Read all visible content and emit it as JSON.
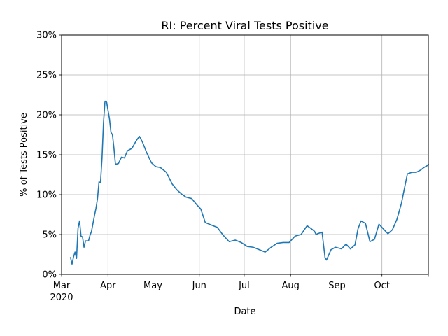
{
  "chart_data": {
    "type": "line",
    "title": "RI: Percent Viral Tests Positive",
    "xlabel": "Date",
    "ylabel": "% of Tests Positive",
    "ylabel_color": "#1f77b4",
    "line_color": "#1f77b4",
    "grid": true,
    "xlim": [
      "2020-03-01",
      "2020-11-01"
    ],
    "ylim": [
      0,
      30
    ],
    "y_ticks": [
      {
        "value": 0,
        "label": "0%"
      },
      {
        "value": 5,
        "label": "5%"
      },
      {
        "value": 10,
        "label": "10%"
      },
      {
        "value": 15,
        "label": "15%"
      },
      {
        "value": 20,
        "label": "20%"
      },
      {
        "value": 25,
        "label": "25%"
      },
      {
        "value": 30,
        "label": "30%"
      }
    ],
    "x_ticks": [
      {
        "date": "2020-03-01",
        "label": "Mar",
        "sublabel": "2020"
      },
      {
        "date": "2020-04-01",
        "label": "Apr"
      },
      {
        "date": "2020-05-01",
        "label": "May"
      },
      {
        "date": "2020-06-01",
        "label": "Jun"
      },
      {
        "date": "2020-07-01",
        "label": "Jul"
      },
      {
        "date": "2020-08-01",
        "label": "Aug"
      },
      {
        "date": "2020-09-01",
        "label": "Sep"
      },
      {
        "date": "2020-10-01",
        "label": "Oct"
      },
      {
        "date": "2020-11-01",
        "label": ""
      }
    ],
    "series": [
      {
        "x": [
          "2020-03-07",
          "2020-03-08",
          "2020-03-09",
          "2020-03-10",
          "2020-03-11",
          "2020-03-12",
          "2020-03-13",
          "2020-03-14",
          "2020-03-15",
          "2020-03-16",
          "2020-03-17",
          "2020-03-18",
          "2020-03-19",
          "2020-03-20",
          "2020-03-21",
          "2020-03-22",
          "2020-03-23",
          "2020-03-24",
          "2020-03-25",
          "2020-03-26",
          "2020-03-27",
          "2020-03-28",
          "2020-03-29",
          "2020-03-30",
          "2020-03-31",
          "2020-04-01",
          "2020-04-02",
          "2020-04-03",
          "2020-04-04",
          "2020-04-05",
          "2020-04-06",
          "2020-04-08",
          "2020-04-10",
          "2020-04-12",
          "2020-04-14",
          "2020-04-17",
          "2020-04-20",
          "2020-04-22",
          "2020-04-24",
          "2020-04-27",
          "2020-04-30",
          "2020-05-03",
          "2020-05-06",
          "2020-05-10",
          "2020-05-14",
          "2020-05-17",
          "2020-05-20",
          "2020-05-23",
          "2020-05-27",
          "2020-05-30",
          "2020-06-02",
          "2020-06-05",
          "2020-06-09",
          "2020-06-13",
          "2020-06-17",
          "2020-06-21",
          "2020-06-25",
          "2020-06-29",
          "2020-07-03",
          "2020-07-07",
          "2020-07-11",
          "2020-07-15",
          "2020-07-19",
          "2020-07-23",
          "2020-07-27",
          "2020-07-31",
          "2020-08-04",
          "2020-08-08",
          "2020-08-12",
          "2020-08-15",
          "2020-08-17",
          "2020-08-18",
          "2020-08-19",
          "2020-08-22",
          "2020-08-24",
          "2020-08-25",
          "2020-08-28",
          "2020-08-31",
          "2020-09-04",
          "2020-09-07",
          "2020-09-10",
          "2020-09-13",
          "2020-09-15",
          "2020-09-17",
          "2020-09-20",
          "2020-09-23",
          "2020-09-26",
          "2020-09-29",
          "2020-10-02",
          "2020-10-05",
          "2020-10-08",
          "2020-10-11",
          "2020-10-14",
          "2020-10-18",
          "2020-10-21",
          "2020-10-24",
          "2020-10-27",
          "2020-10-29",
          "2020-10-31",
          "2020-11-01"
        ],
        "values": [
          2.1,
          1.3,
          2.2,
          2.8,
          2.0,
          5.8,
          6.7,
          4.8,
          4.7,
          3.4,
          4.2,
          4.2,
          4.2,
          4.9,
          5.4,
          6.4,
          7.4,
          8.3,
          9.5,
          11.6,
          11.5,
          14.5,
          19.0,
          21.7,
          21.7,
          20.6,
          19.5,
          17.8,
          17.5,
          15.8,
          13.8,
          13.9,
          14.7,
          14.6,
          15.5,
          15.8,
          16.8,
          17.3,
          16.6,
          15.2,
          14.0,
          13.5,
          13.4,
          12.8,
          11.3,
          10.6,
          10.1,
          9.7,
          9.5,
          8.8,
          8.2,
          6.5,
          6.2,
          5.9,
          4.9,
          4.1,
          4.3,
          4.0,
          3.5,
          3.4,
          3.1,
          2.8,
          3.4,
          3.9,
          4.0,
          4.0,
          4.8,
          5.0,
          6.1,
          5.7,
          5.4,
          5.0,
          5.1,
          5.3,
          2.1,
          1.8,
          3.1,
          3.4,
          3.2,
          3.8,
          3.2,
          3.7,
          5.7,
          6.7,
          6.4,
          4.1,
          4.4,
          6.3,
          5.7,
          5.1,
          5.6,
          6.9,
          8.9,
          12.6,
          12.8,
          12.8,
          13.1,
          13.4,
          13.6,
          13.8
        ]
      }
    ]
  }
}
